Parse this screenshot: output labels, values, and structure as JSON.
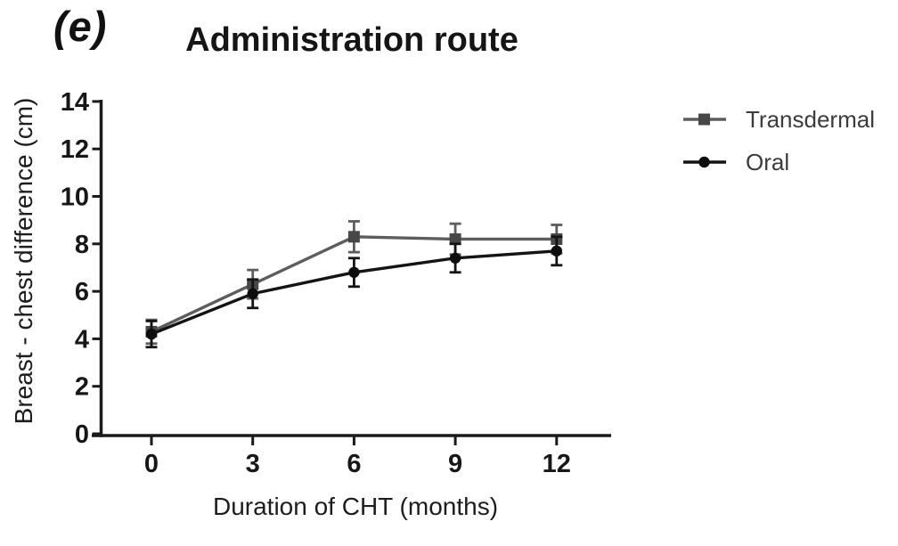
{
  "panel_label": "(e)",
  "chart_data": {
    "type": "line",
    "title": "Administration route",
    "xlabel": "Duration of CHT (months)",
    "ylabel": "Breast - chest difference (cm)",
    "x": [
      0,
      3,
      6,
      9,
      12
    ],
    "x_ticks": [
      0,
      3,
      6,
      9,
      12
    ],
    "y_ticks": [
      0,
      2,
      4,
      6,
      8,
      10,
      12,
      14
    ],
    "xlim": [
      -1.8,
      13.6
    ],
    "ylim": [
      0,
      14
    ],
    "grid": false,
    "legend_position": "right-outside",
    "error_bars": true,
    "axis_color": "#1a1a1a",
    "series": [
      {
        "name": "Transdermal",
        "marker": "square",
        "color": "#5d5d5d",
        "marker_color": "#474747",
        "values": [
          4.3,
          6.3,
          8.3,
          8.2,
          8.2
        ],
        "errors": [
          0.5,
          0.6,
          0.65,
          0.65,
          0.6
        ]
      },
      {
        "name": "Oral",
        "marker": "circle",
        "color": "#141414",
        "marker_color": "#0d0d0d",
        "values": [
          4.2,
          5.9,
          6.8,
          7.4,
          7.7
        ],
        "errors": [
          0.55,
          0.6,
          0.6,
          0.6,
          0.6
        ]
      }
    ]
  }
}
